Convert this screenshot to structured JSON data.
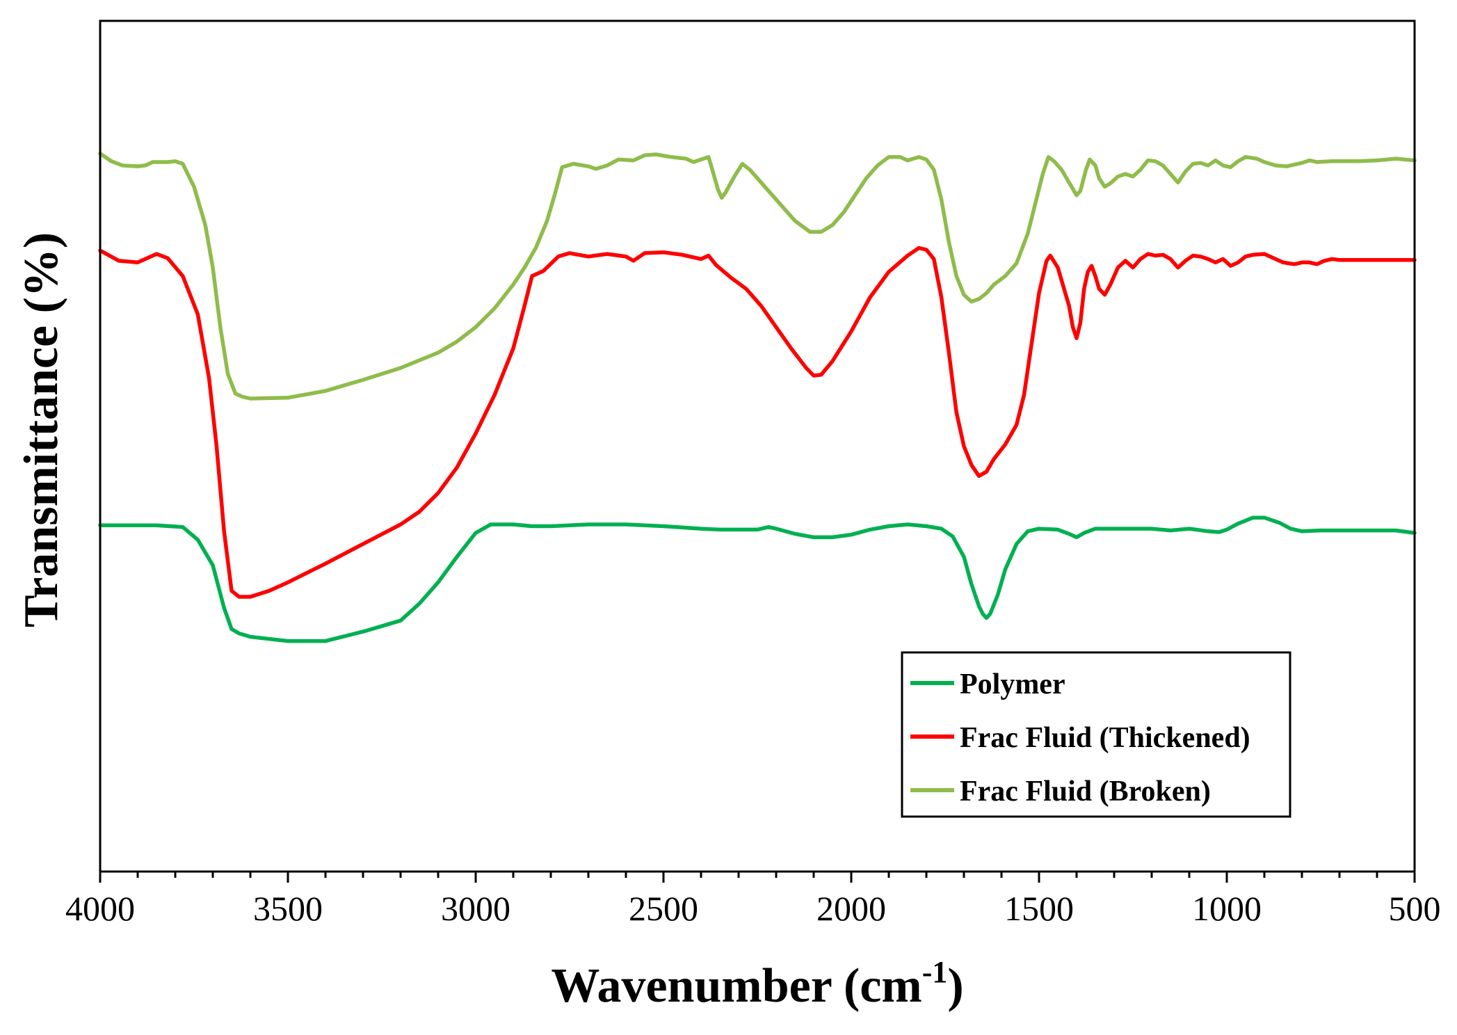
{
  "chart_data": {
    "type": "line",
    "title": "",
    "xlabel": "Wavenumber (cm",
    "xlabel_sup": "-1",
    "xlabel_close": ")",
    "ylabel": "Transmittance (%)",
    "xlim": [
      4000,
      500
    ],
    "ylim": [
      0,
      100
    ],
    "x_reversed": true,
    "y_ticks_shown": false,
    "x_ticks": [
      4000,
      3500,
      3000,
      2500,
      2000,
      1500,
      1000,
      500
    ],
    "x_tick_labels": [
      "4000",
      "3500",
      "3000",
      "2500",
      "2000",
      "1500",
      "1000",
      "500"
    ],
    "legend_position": "bottom-right",
    "grid": false,
    "series": [
      {
        "name": "Polymer",
        "color": "#00b050",
        "points": [
          [
            4000,
            40.7
          ],
          [
            3850,
            40.7
          ],
          [
            3780,
            40.5
          ],
          [
            3740,
            39.0
          ],
          [
            3700,
            36.0
          ],
          [
            3670,
            31.0
          ],
          [
            3650,
            28.5
          ],
          [
            3630,
            28.0
          ],
          [
            3600,
            27.6
          ],
          [
            3500,
            27.1
          ],
          [
            3400,
            27.1
          ],
          [
            3300,
            28.2
          ],
          [
            3200,
            29.5
          ],
          [
            3150,
            31.5
          ],
          [
            3100,
            34.0
          ],
          [
            3050,
            37.0
          ],
          [
            3000,
            39.8
          ],
          [
            2960,
            40.8
          ],
          [
            2900,
            40.8
          ],
          [
            2850,
            40.6
          ],
          [
            2800,
            40.6
          ],
          [
            2700,
            40.8
          ],
          [
            2600,
            40.8
          ],
          [
            2500,
            40.6
          ],
          [
            2400,
            40.3
          ],
          [
            2350,
            40.2
          ],
          [
            2300,
            40.2
          ],
          [
            2250,
            40.2
          ],
          [
            2220,
            40.5
          ],
          [
            2200,
            40.3
          ],
          [
            2150,
            39.7
          ],
          [
            2100,
            39.3
          ],
          [
            2050,
            39.3
          ],
          [
            2000,
            39.6
          ],
          [
            1950,
            40.2
          ],
          [
            1900,
            40.6
          ],
          [
            1850,
            40.8
          ],
          [
            1800,
            40.6
          ],
          [
            1760,
            40.3
          ],
          [
            1730,
            39.4
          ],
          [
            1700,
            37.0
          ],
          [
            1680,
            33.8
          ],
          [
            1660,
            31.2
          ],
          [
            1650,
            30.3
          ],
          [
            1640,
            29.8
          ],
          [
            1630,
            30.3
          ],
          [
            1610,
            32.5
          ],
          [
            1590,
            35.5
          ],
          [
            1560,
            38.5
          ],
          [
            1530,
            40.0
          ],
          [
            1500,
            40.3
          ],
          [
            1450,
            40.2
          ],
          [
            1420,
            39.7
          ],
          [
            1400,
            39.3
          ],
          [
            1380,
            39.8
          ],
          [
            1350,
            40.3
          ],
          [
            1300,
            40.3
          ],
          [
            1250,
            40.3
          ],
          [
            1200,
            40.3
          ],
          [
            1150,
            40.1
          ],
          [
            1100,
            40.3
          ],
          [
            1050,
            40.0
          ],
          [
            1020,
            39.9
          ],
          [
            1000,
            40.2
          ],
          [
            970,
            40.9
          ],
          [
            930,
            41.6
          ],
          [
            900,
            41.6
          ],
          [
            860,
            41.0
          ],
          [
            830,
            40.3
          ],
          [
            800,
            40.0
          ],
          [
            750,
            40.1
          ],
          [
            700,
            40.1
          ],
          [
            650,
            40.1
          ],
          [
            600,
            40.1
          ],
          [
            550,
            40.1
          ],
          [
            500,
            39.8
          ]
        ]
      },
      {
        "name": "Frac Fluid (Thickened)",
        "color": "#ff0000",
        "points": [
          [
            4000,
            73.0
          ],
          [
            3950,
            71.8
          ],
          [
            3900,
            71.6
          ],
          [
            3870,
            72.2
          ],
          [
            3850,
            72.6
          ],
          [
            3820,
            72.1
          ],
          [
            3780,
            70.0
          ],
          [
            3740,
            65.5
          ],
          [
            3710,
            58.0
          ],
          [
            3690,
            50.0
          ],
          [
            3670,
            40.0
          ],
          [
            3650,
            33.0
          ],
          [
            3630,
            32.3
          ],
          [
            3600,
            32.3
          ],
          [
            3550,
            33.0
          ],
          [
            3500,
            34.0
          ],
          [
            3400,
            36.2
          ],
          [
            3300,
            38.5
          ],
          [
            3200,
            40.8
          ],
          [
            3150,
            42.3
          ],
          [
            3100,
            44.5
          ],
          [
            3050,
            47.5
          ],
          [
            3000,
            51.5
          ],
          [
            2950,
            56.0
          ],
          [
            2900,
            61.5
          ],
          [
            2870,
            66.5
          ],
          [
            2850,
            70.0
          ],
          [
            2820,
            70.6
          ],
          [
            2780,
            72.3
          ],
          [
            2750,
            72.7
          ],
          [
            2700,
            72.3
          ],
          [
            2650,
            72.6
          ],
          [
            2600,
            72.3
          ],
          [
            2580,
            71.8
          ],
          [
            2550,
            72.7
          ],
          [
            2500,
            72.8
          ],
          [
            2450,
            72.5
          ],
          [
            2400,
            72.0
          ],
          [
            2380,
            72.4
          ],
          [
            2360,
            71.3
          ],
          [
            2320,
            69.8
          ],
          [
            2280,
            68.5
          ],
          [
            2240,
            66.5
          ],
          [
            2200,
            64.0
          ],
          [
            2160,
            61.5
          ],
          [
            2120,
            59.2
          ],
          [
            2100,
            58.3
          ],
          [
            2080,
            58.4
          ],
          [
            2050,
            60.0
          ],
          [
            2000,
            63.5
          ],
          [
            1950,
            67.5
          ],
          [
            1900,
            70.5
          ],
          [
            1850,
            72.4
          ],
          [
            1820,
            73.3
          ],
          [
            1800,
            73.1
          ],
          [
            1780,
            72.0
          ],
          [
            1760,
            67.5
          ],
          [
            1740,
            61.0
          ],
          [
            1720,
            54.0
          ],
          [
            1700,
            50.0
          ],
          [
            1680,
            47.8
          ],
          [
            1660,
            46.5
          ],
          [
            1640,
            47.0
          ],
          [
            1620,
            48.5
          ],
          [
            1590,
            50.2
          ],
          [
            1560,
            52.5
          ],
          [
            1540,
            56.0
          ],
          [
            1520,
            62.0
          ],
          [
            1500,
            68.0
          ],
          [
            1480,
            71.8
          ],
          [
            1470,
            72.4
          ],
          [
            1450,
            71.0
          ],
          [
            1430,
            68.0
          ],
          [
            1420,
            66.5
          ],
          [
            1410,
            64.0
          ],
          [
            1400,
            62.7
          ],
          [
            1390,
            64.5
          ],
          [
            1380,
            68.5
          ],
          [
            1370,
            70.5
          ],
          [
            1360,
            71.2
          ],
          [
            1350,
            70.0
          ],
          [
            1340,
            68.5
          ],
          [
            1325,
            67.8
          ],
          [
            1310,
            69.0
          ],
          [
            1290,
            71.0
          ],
          [
            1270,
            71.8
          ],
          [
            1250,
            71.0
          ],
          [
            1230,
            72.0
          ],
          [
            1210,
            72.6
          ],
          [
            1190,
            72.4
          ],
          [
            1170,
            72.5
          ],
          [
            1150,
            72.0
          ],
          [
            1130,
            71.0
          ],
          [
            1110,
            71.8
          ],
          [
            1090,
            72.4
          ],
          [
            1070,
            72.3
          ],
          [
            1050,
            72.0
          ],
          [
            1030,
            71.6
          ],
          [
            1010,
            72.0
          ],
          [
            990,
            71.2
          ],
          [
            970,
            71.6
          ],
          [
            950,
            72.3
          ],
          [
            930,
            72.5
          ],
          [
            900,
            72.6
          ],
          [
            880,
            72.2
          ],
          [
            850,
            71.6
          ],
          [
            820,
            71.4
          ],
          [
            800,
            71.6
          ],
          [
            780,
            71.6
          ],
          [
            760,
            71.4
          ],
          [
            740,
            71.8
          ],
          [
            720,
            72.0
          ],
          [
            700,
            71.9
          ],
          [
            650,
            71.9
          ],
          [
            600,
            71.9
          ],
          [
            550,
            71.9
          ],
          [
            500,
            71.9
          ]
        ]
      },
      {
        "name": "Frac Fluid (Broken)",
        "color": "#8fbc4b",
        "points": [
          [
            4000,
            84.4
          ],
          [
            3970,
            83.5
          ],
          [
            3940,
            83.0
          ],
          [
            3900,
            82.9
          ],
          [
            3880,
            83.0
          ],
          [
            3860,
            83.4
          ],
          [
            3820,
            83.4
          ],
          [
            3800,
            83.5
          ],
          [
            3780,
            83.2
          ],
          [
            3750,
            80.5
          ],
          [
            3720,
            76.0
          ],
          [
            3700,
            71.0
          ],
          [
            3680,
            64.0
          ],
          [
            3660,
            58.5
          ],
          [
            3640,
            56.2
          ],
          [
            3620,
            55.8
          ],
          [
            3600,
            55.6
          ],
          [
            3500,
            55.7
          ],
          [
            3400,
            56.5
          ],
          [
            3300,
            57.8
          ],
          [
            3200,
            59.2
          ],
          [
            3100,
            61.0
          ],
          [
            3050,
            62.3
          ],
          [
            3000,
            64.0
          ],
          [
            2950,
            66.2
          ],
          [
            2900,
            69.0
          ],
          [
            2870,
            71.0
          ],
          [
            2840,
            73.3
          ],
          [
            2810,
            76.5
          ],
          [
            2790,
            79.5
          ],
          [
            2770,
            82.8
          ],
          [
            2740,
            83.2
          ],
          [
            2700,
            82.9
          ],
          [
            2680,
            82.6
          ],
          [
            2650,
            83.0
          ],
          [
            2620,
            83.7
          ],
          [
            2580,
            83.6
          ],
          [
            2550,
            84.2
          ],
          [
            2520,
            84.3
          ],
          [
            2480,
            84.0
          ],
          [
            2440,
            83.8
          ],
          [
            2420,
            83.4
          ],
          [
            2400,
            83.7
          ],
          [
            2380,
            84.0
          ],
          [
            2370,
            82.5
          ],
          [
            2355,
            80.2
          ],
          [
            2345,
            79.2
          ],
          [
            2335,
            79.8
          ],
          [
            2310,
            81.8
          ],
          [
            2290,
            83.2
          ],
          [
            2270,
            82.5
          ],
          [
            2230,
            80.5
          ],
          [
            2190,
            78.5
          ],
          [
            2150,
            76.5
          ],
          [
            2110,
            75.2
          ],
          [
            2080,
            75.2
          ],
          [
            2050,
            76.0
          ],
          [
            2020,
            77.5
          ],
          [
            1990,
            79.5
          ],
          [
            1960,
            81.5
          ],
          [
            1930,
            83.0
          ],
          [
            1900,
            84.0
          ],
          [
            1870,
            84.0
          ],
          [
            1850,
            83.6
          ],
          [
            1820,
            84.0
          ],
          [
            1800,
            83.7
          ],
          [
            1780,
            82.5
          ],
          [
            1760,
            79.0
          ],
          [
            1740,
            74.0
          ],
          [
            1720,
            70.0
          ],
          [
            1700,
            67.8
          ],
          [
            1680,
            67.0
          ],
          [
            1660,
            67.3
          ],
          [
            1640,
            68.0
          ],
          [
            1620,
            69.0
          ],
          [
            1590,
            70.0
          ],
          [
            1560,
            71.5
          ],
          [
            1530,
            75.0
          ],
          [
            1510,
            78.5
          ],
          [
            1490,
            82.0
          ],
          [
            1475,
            84.0
          ],
          [
            1460,
            83.5
          ],
          [
            1440,
            82.5
          ],
          [
            1420,
            81.0
          ],
          [
            1400,
            79.5
          ],
          [
            1390,
            80.0
          ],
          [
            1375,
            82.5
          ],
          [
            1365,
            83.7
          ],
          [
            1350,
            83.0
          ],
          [
            1340,
            81.5
          ],
          [
            1325,
            80.5
          ],
          [
            1310,
            80.9
          ],
          [
            1290,
            81.7
          ],
          [
            1270,
            82.0
          ],
          [
            1250,
            81.7
          ],
          [
            1230,
            82.5
          ],
          [
            1210,
            83.6
          ],
          [
            1190,
            83.5
          ],
          [
            1170,
            83.0
          ],
          [
            1150,
            82.0
          ],
          [
            1130,
            81.0
          ],
          [
            1110,
            82.3
          ],
          [
            1090,
            83.2
          ],
          [
            1070,
            83.3
          ],
          [
            1050,
            83.0
          ],
          [
            1030,
            83.6
          ],
          [
            1010,
            83.0
          ],
          [
            990,
            82.8
          ],
          [
            970,
            83.5
          ],
          [
            950,
            84.0
          ],
          [
            920,
            83.8
          ],
          [
            900,
            83.4
          ],
          [
            870,
            83.0
          ],
          [
            840,
            82.9
          ],
          [
            800,
            83.3
          ],
          [
            780,
            83.6
          ],
          [
            760,
            83.4
          ],
          [
            720,
            83.5
          ],
          [
            700,
            83.5
          ],
          [
            650,
            83.5
          ],
          [
            600,
            83.6
          ],
          [
            550,
            83.8
          ],
          [
            500,
            83.6
          ]
        ]
      }
    ]
  }
}
